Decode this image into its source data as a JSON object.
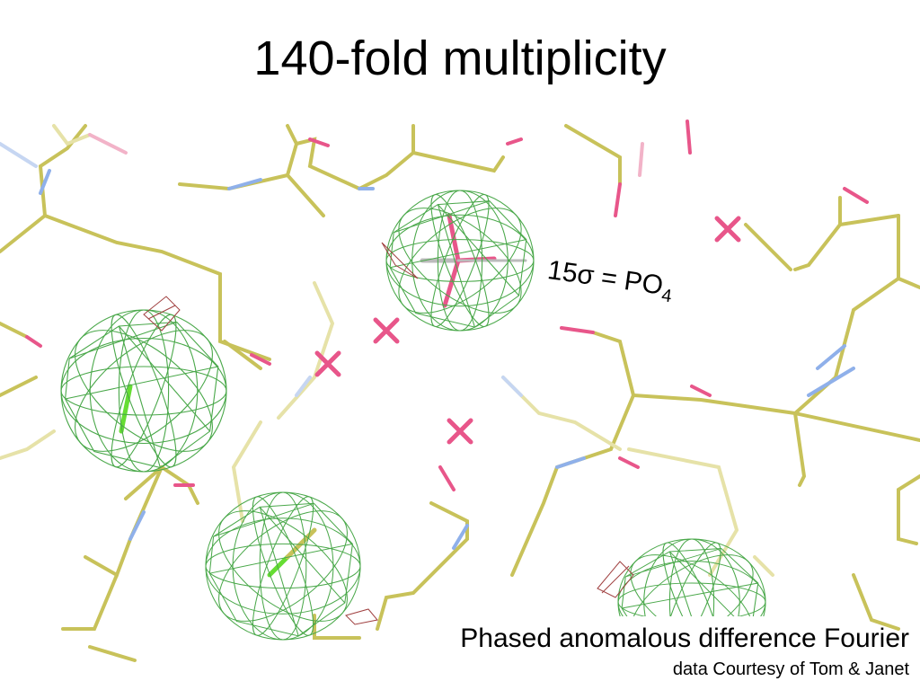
{
  "title": "140-fold multiplicity",
  "annotation": {
    "text": "15σ = PO",
    "subscript": "4"
  },
  "caption": {
    "main": "Phased anomalous difference Fourier",
    "credit": "data Courtesy of Tom & Janet"
  }
}
